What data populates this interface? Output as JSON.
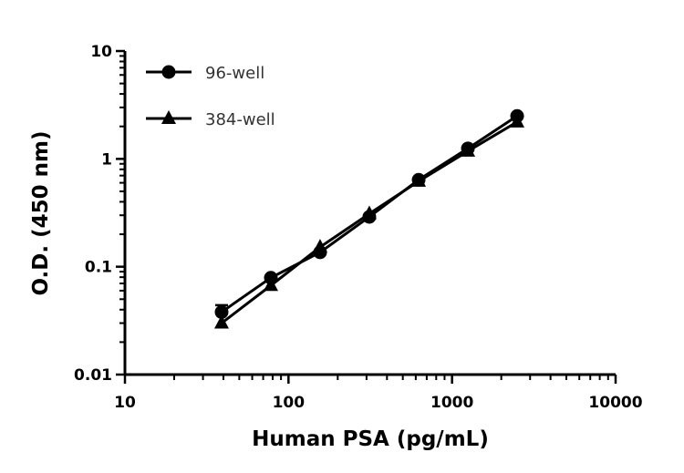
{
  "chart_data": {
    "type": "line",
    "title": "",
    "xlabel": "Human PSA (pg/mL)",
    "ylabel": "O.D. (450 nm)",
    "xscale": "log",
    "yscale": "log",
    "xlim": [
      10,
      10000
    ],
    "ylim": [
      0.01,
      10
    ],
    "xticks": [
      "10",
      "100",
      "1000",
      "10000"
    ],
    "yticks": [
      "0.01",
      "0.1",
      "1",
      "10"
    ],
    "grid": false,
    "legend_position": "top-left",
    "x": [
      39,
      78,
      156,
      312,
      625,
      1250,
      2500
    ],
    "series": [
      {
        "name": "96-well",
        "marker": "circle",
        "color": "#000000",
        "values": [
          0.038,
          0.079,
          0.136,
          0.29,
          0.64,
          1.25,
          2.5
        ]
      },
      {
        "name": "384-well",
        "marker": "triangle",
        "color": "#000000",
        "values": [
          0.03,
          0.067,
          0.152,
          0.31,
          0.62,
          1.18,
          2.2
        ]
      }
    ]
  }
}
